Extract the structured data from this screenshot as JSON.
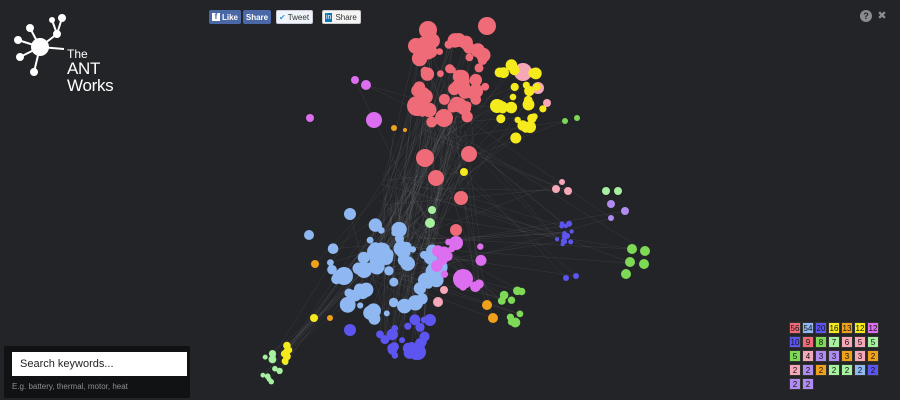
{
  "branding": {
    "the": "The",
    "name": "ANT Works"
  },
  "social": {
    "fb_like": "Like",
    "fb_share": "Share",
    "tweet": "Tweet",
    "linkedin_share": "Share"
  },
  "search": {
    "placeholder": "Search keywords...",
    "hint": "E.g. battery, thermal, motor, heat"
  },
  "palette": {
    "red": "#f06b78",
    "yellow": "#f5ea1c",
    "pink": "#f6a8b8",
    "blue": "#8fb8f2",
    "violet": "#5d55ef",
    "magenta": "#de6ef0",
    "green": "#7ed957",
    "orange": "#f0a11c",
    "lightgreen": "#a6f0a0",
    "lavender": "#b18cf0"
  },
  "legend": [
    [
      {
        "v": "56",
        "c": "red"
      },
      {
        "v": "54",
        "c": "blue"
      },
      {
        "v": "20",
        "c": "violet"
      },
      {
        "v": "16",
        "c": "yellow"
      },
      {
        "v": "13",
        "c": "orange"
      },
      {
        "v": "12",
        "c": "yellow"
      },
      {
        "v": "12",
        "c": "magenta"
      }
    ],
    [
      {
        "v": "10",
        "c": "violet"
      },
      {
        "v": "9",
        "c": "red"
      },
      {
        "v": "8",
        "c": "green"
      },
      {
        "v": "7",
        "c": "lightgreen"
      },
      {
        "v": "6",
        "c": "pink"
      },
      {
        "v": "5",
        "c": "pink"
      },
      {
        "v": "5",
        "c": "lightgreen"
      }
    ],
    [
      {
        "v": "5",
        "c": "green"
      },
      {
        "v": "4",
        "c": "pink"
      },
      {
        "v": "3",
        "c": "lavender"
      },
      {
        "v": "3",
        "c": "lavender"
      },
      {
        "v": "3",
        "c": "orange"
      },
      {
        "v": "3",
        "c": "pink"
      },
      {
        "v": "2",
        "c": "orange"
      }
    ],
    [
      {
        "v": "2",
        "c": "pink"
      },
      {
        "v": "2",
        "c": "lavender"
      },
      {
        "v": "2",
        "c": "orange"
      },
      {
        "v": "2",
        "c": "lightgreen"
      },
      {
        "v": "2",
        "c": "lightgreen"
      },
      {
        "v": "2",
        "c": "blue"
      },
      {
        "v": "2",
        "c": "violet"
      }
    ],
    [
      {
        "v": "2",
        "c": "lavender"
      },
      {
        "v": "2",
        "c": "lavender"
      }
    ]
  ]
}
